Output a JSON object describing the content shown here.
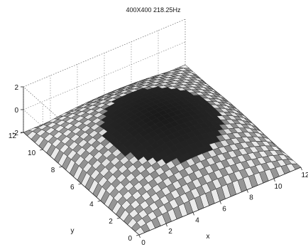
{
  "chart_data": {
    "type": "surface3d",
    "title": "400X400 218.25Hz",
    "xlabel": "x",
    "ylabel": "y",
    "zlabel": "",
    "xlim": [
      0,
      12
    ],
    "ylim": [
      0,
      12
    ],
    "zlim": [
      -2,
      2
    ],
    "x_ticks": [
      "0",
      "2",
      "4",
      "6",
      "8",
      "10",
      "12"
    ],
    "y_ticks": [
      "0",
      "2",
      "4",
      "6",
      "8",
      "10",
      "12"
    ],
    "z_ticks": [
      "-2",
      "0",
      "2"
    ],
    "grid": true,
    "mesh": {
      "nx": 30,
      "ny": 30
    },
    "surface": {
      "description_shape": "sin(pi*x/12)*sin(pi*y/12) hump",
      "peak_z": 1.0,
      "edge_z": -2.0,
      "center": [
        6,
        6
      ]
    }
  }
}
